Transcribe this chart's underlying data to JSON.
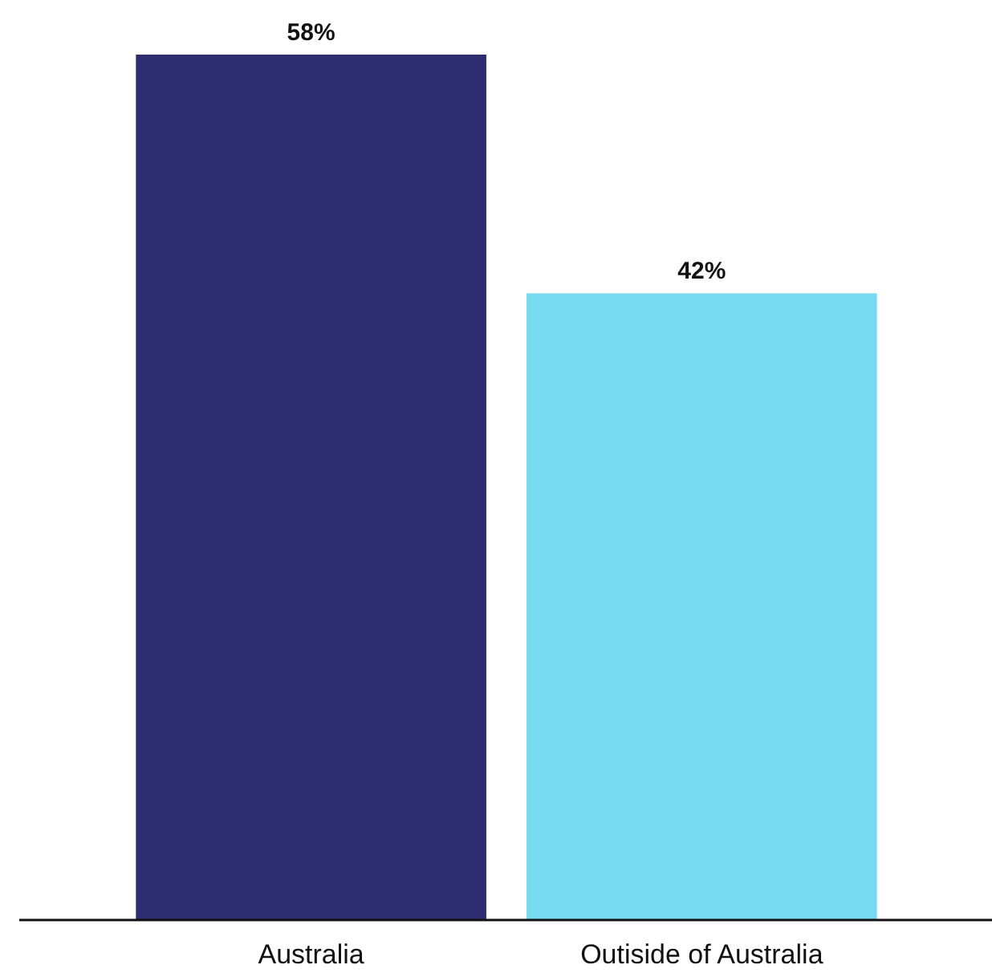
{
  "chart_data": {
    "type": "bar",
    "categories": [
      "Australia",
      "Outiside of Australia"
    ],
    "values": [
      58,
      42
    ],
    "colors": [
      "#2e2d70",
      "#78dbef"
    ],
    "value_labels": [
      "58%",
      "42%"
    ]
  }
}
